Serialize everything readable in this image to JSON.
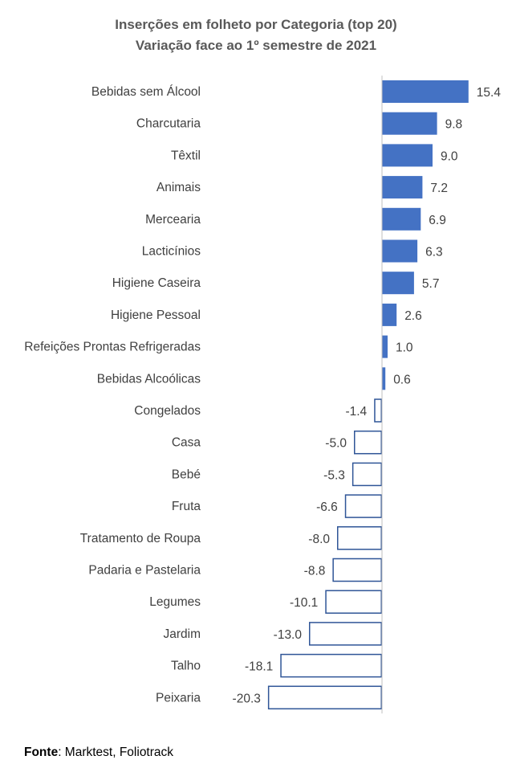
{
  "chart_data": {
    "type": "bar",
    "orientation": "horizontal",
    "title": "Inserções em folheto por Categoria (top 20)",
    "subtitle": "Variação face ao 1º semestre de 2021",
    "categories": [
      "Bebidas sem Álcool",
      "Charcutaria",
      "Têxtil",
      "Animais",
      "Mercearia",
      "Lacticínios",
      "Higiene Caseira",
      "Higiene Pessoal",
      "Refeições Prontas Refrigeradas",
      "Bebidas Alcoólicas",
      "Congelados",
      "Casa",
      "Bebé",
      "Fruta",
      "Tratamento de Roupa",
      "Padaria e Pastelaria",
      "Legumes",
      "Jardim",
      "Talho",
      "Peixaria"
    ],
    "values": [
      15.4,
      9.8,
      9.0,
      7.2,
      6.9,
      6.3,
      5.7,
      2.6,
      1.0,
      0.6,
      -1.4,
      -5.0,
      -5.3,
      -6.6,
      -8.0,
      -8.8,
      -10.1,
      -13.0,
      -18.1,
      -20.3
    ],
    "value_labels": [
      "15.4",
      "9.8",
      "9.0",
      "7.2",
      "6.9",
      "6.3",
      "5.7",
      "2.6",
      "1.0",
      "0.6",
      "-1.4",
      "-5.0",
      "-5.3",
      "-6.6",
      "-8.0",
      "-8.8",
      "-10.1",
      "-13.0",
      "-18.1",
      "-20.3"
    ],
    "xlim": [
      -20.3,
      15.4
    ],
    "xlabel": "",
    "ylabel": "",
    "grid": false,
    "legend": "none",
    "colors": {
      "positive_fill": "#4472C4",
      "negative_fill": "#FFFFFF",
      "negative_stroke": "#2F5597",
      "axis": "#BFBFBF",
      "text": "#404040",
      "title": "#595959"
    }
  },
  "source": {
    "label": "Fonte",
    "text": ": Marktest, Foliotrack"
  }
}
